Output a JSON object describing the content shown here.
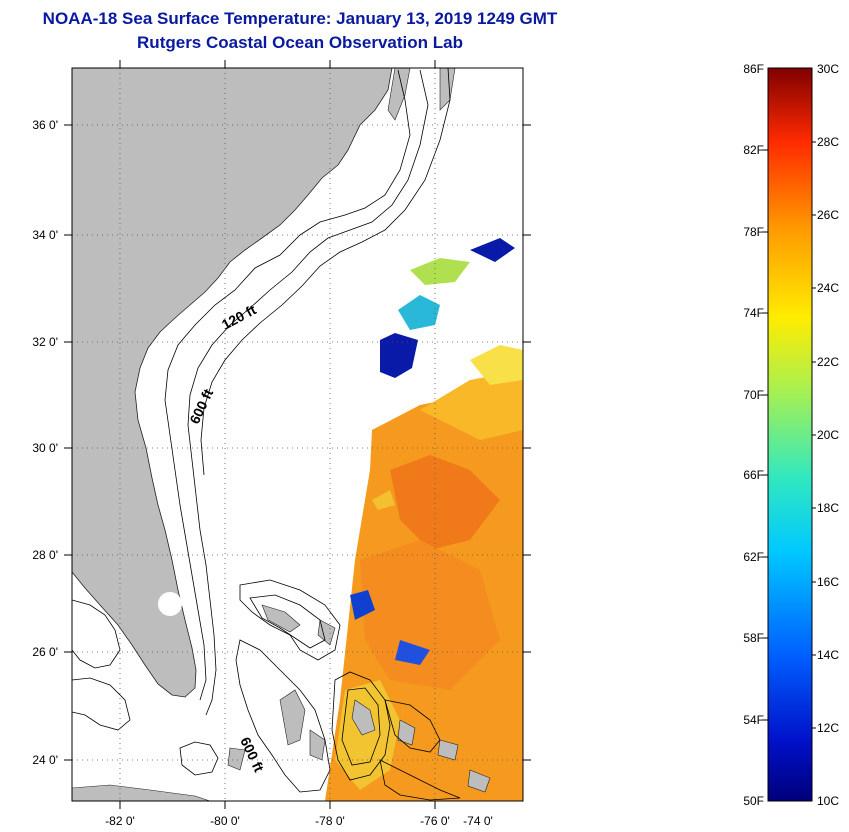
{
  "header": {
    "title": "NOAA-18 Sea Surface Temperature:  January 13, 2019 1249 GMT",
    "subtitle": "Rutgers Coastal Ocean Observation Lab"
  },
  "map": {
    "lat_labels": [
      "36 0'",
      "34 0'",
      "32 0'",
      "30 0'",
      "28 0'",
      "26 0'",
      "24 0'"
    ],
    "lon_labels": [
      "-82 0'",
      "-80 0'",
      "-78 0'",
      "-76 0'",
      "-74 0'"
    ],
    "contour_labels": [
      "120 ft",
      "600 ft",
      "600 ft"
    ],
    "colors": {
      "land": "#bdbdbd",
      "ocean": "#ffffff",
      "sst_warm": "#f59a1e"
    }
  },
  "colorbar": {
    "fahrenheit_labels": [
      "86F",
      "82F",
      "78F",
      "74F",
      "70F",
      "66F",
      "62F",
      "58F",
      "54F",
      "50F"
    ],
    "celsius_labels": [
      "30C",
      "28C",
      "26C",
      "24C",
      "22C",
      "20C",
      "18C",
      "16C",
      "14C",
      "12C",
      "10C"
    ]
  }
}
